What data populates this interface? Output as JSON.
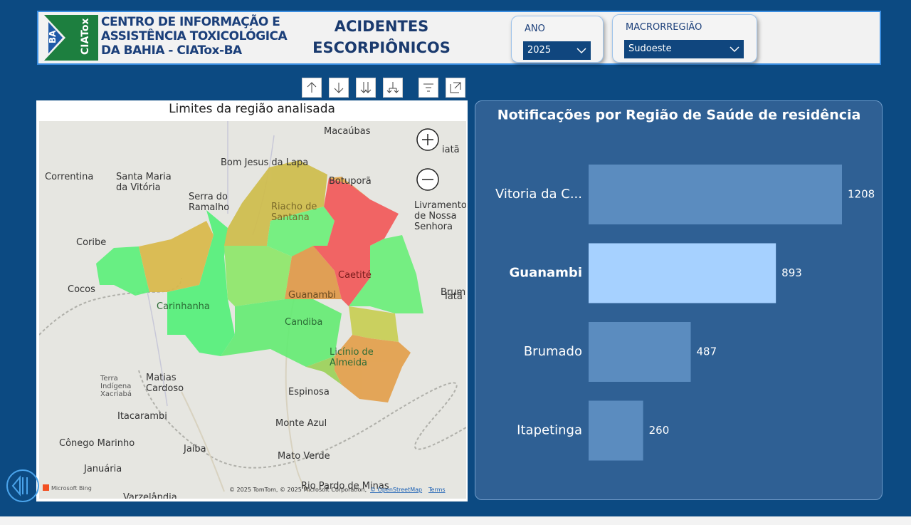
{
  "header": {
    "logo_badge": [
      "BA",
      "CIATox"
    ],
    "logo_lines": [
      "CENTRO DE INFORMAÇÃO E",
      "ASSISTÊNCIA TOXICOLÓGICA",
      "DA BAHIA - CIATox-BA"
    ],
    "title_lines": [
      "ACIDENTES",
      "ESCORPIÔNICOS"
    ]
  },
  "filters": [
    {
      "label": "ANO",
      "value": "2025"
    },
    {
      "label": "MACRORREGIÃO",
      "value": "Sudoeste"
    }
  ],
  "map": {
    "title": "Limites da região analisada",
    "labels": [
      [
        "Macaúbas"
      ],
      [
        "Bom Jesus da Lapa"
      ],
      [
        "Correntina"
      ],
      [
        "Santa Maria",
        "da Vitória"
      ],
      [
        "Botuporã"
      ],
      [
        "Serra do",
        "Ramalho"
      ],
      [
        "Riacho de",
        "Santana"
      ],
      [
        "Livramento",
        "de Nossa",
        "Senhora"
      ],
      [
        "Coribe"
      ],
      [
        "Caetité"
      ],
      [
        "Cocos"
      ],
      [
        "Guanambi"
      ],
      [
        "Carinhanha"
      ],
      [
        "Brum"
      ],
      [
        "Candiba"
      ],
      [
        "Licínio de",
        "Almeida"
      ],
      [
        "Terra",
        "Indígena",
        "Xacriabá"
      ],
      [
        "Matias",
        "Cardoso"
      ],
      [
        "Espinosa"
      ],
      [
        "Itacarambi"
      ],
      [
        "Monte Azul"
      ],
      [
        "Cônego Marinho"
      ],
      [
        "Jaíba"
      ],
      [
        "Mato Verde"
      ],
      [
        "Januária"
      ],
      [
        "Rio Pardo de Minas"
      ],
      [
        "Varzelândia"
      ],
      [
        "iatã"
      ],
      [
        "Iatã"
      ]
    ],
    "brand": "Microsoft Bing",
    "attribution": "© 2025 TomTom, © 2025 Microsoft Corporation,",
    "osm": "© OpenStreetMap",
    "terms": "Terms"
  },
  "chart_data": {
    "type": "bar",
    "orientation": "horizontal",
    "title": "Notificações por Região de Saúde de residência",
    "categories": [
      "Vitoria da C...",
      "Guanambi",
      "Brumado",
      "Itapetinga"
    ],
    "values": [
      1208,
      893,
      487,
      260
    ],
    "colors": [
      "#5b8cbf",
      "#a6d1ff",
      "#5b8cbf",
      "#5b8cbf"
    ],
    "highlight_index": 1,
    "data_labels": true
  }
}
